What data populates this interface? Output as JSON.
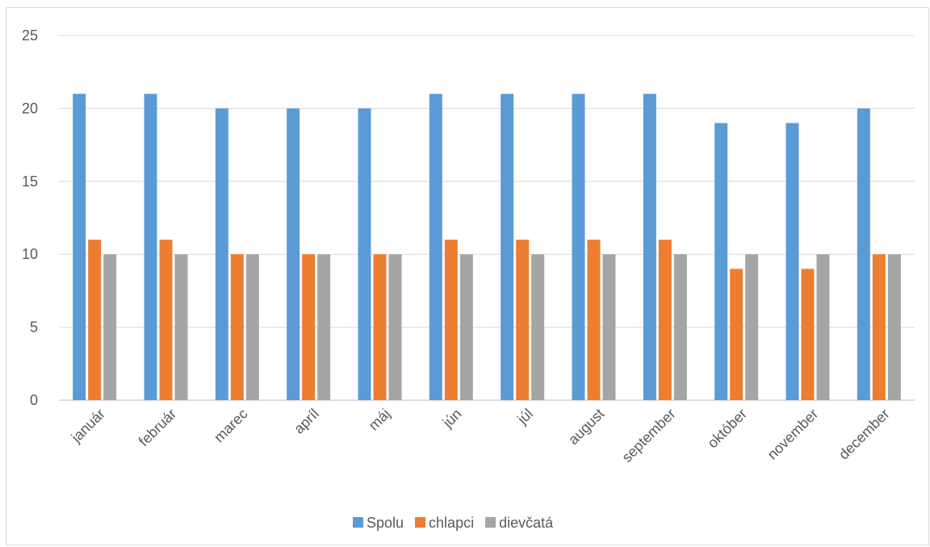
{
  "chart_data": {
    "type": "bar",
    "title": "",
    "xlabel": "",
    "ylabel": "",
    "categories": [
      "január",
      "február",
      "marec",
      "apríl",
      "máj",
      "jún",
      "júl",
      "august",
      "september",
      "október",
      "november",
      "december"
    ],
    "series": [
      {
        "name": "Spolu",
        "color": "#5b9bd5",
        "values": [
          21,
          21,
          20,
          20,
          20,
          21,
          21,
          21,
          21,
          19,
          19,
          20
        ]
      },
      {
        "name": "chlapci",
        "color": "#ed7d31",
        "values": [
          11,
          11,
          10,
          10,
          10,
          11,
          11,
          11,
          11,
          9,
          9,
          10
        ]
      },
      {
        "name": "dievčatá",
        "color": "#a5a5a5",
        "values": [
          10,
          10,
          10,
          10,
          10,
          10,
          10,
          10,
          10,
          10,
          10,
          10
        ]
      }
    ],
    "ylim": [
      0,
      25
    ],
    "yticks": [
      "0",
      "5",
      "10",
      "15",
      "20",
      "25"
    ],
    "grid": true,
    "legend_position": "bottom",
    "gridline_color": "#d9d9d9",
    "axis_color": "#bfbfbf",
    "text_color": "#595959"
  }
}
